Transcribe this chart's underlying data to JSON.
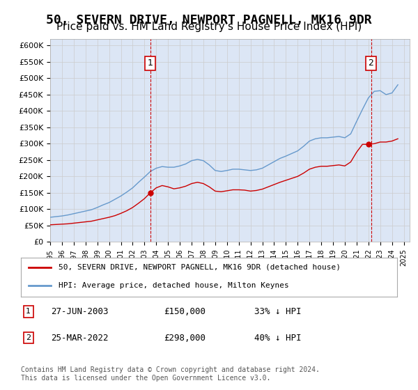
{
  "title": "50, SEVERN DRIVE, NEWPORT PAGNELL, MK16 9DR",
  "subtitle": "Price paid vs. HM Land Registry's House Price Index (HPI)",
  "title_fontsize": 13,
  "subtitle_fontsize": 11,
  "ylabel": "",
  "xlabel": "",
  "ylim": [
    0,
    620000
  ],
  "yticks": [
    0,
    50000,
    100000,
    150000,
    200000,
    250000,
    300000,
    350000,
    400000,
    450000,
    500000,
    550000,
    600000
  ],
  "ytick_labels": [
    "£0",
    "£50K",
    "£100K",
    "£150K",
    "£200K",
    "£250K",
    "£300K",
    "£350K",
    "£400K",
    "£450K",
    "£500K",
    "£550K",
    "£600K"
  ],
  "grid_color": "#cccccc",
  "bg_color": "#dce6f5",
  "plot_bg_color": "#dce6f5",
  "fig_bg_color": "#ffffff",
  "red_line_color": "#cc0000",
  "blue_line_color": "#6699cc",
  "transaction1": {
    "date_label": "27-JUN-2003",
    "year": 2003.49,
    "price": 150000,
    "label": "1"
  },
  "transaction2": {
    "date_label": "25-MAR-2022",
    "year": 2022.22,
    "price": 298000,
    "label": "2"
  },
  "vline_color": "#cc0000",
  "marker_box_color": "#cc0000",
  "legend_label_red": "50, SEVERN DRIVE, NEWPORT PAGNELL, MK16 9DR (detached house)",
  "legend_label_blue": "HPI: Average price, detached house, Milton Keynes",
  "footer": "Contains HM Land Registry data © Crown copyright and database right 2024.\nThis data is licensed under the Open Government Licence v3.0.",
  "table_rows": [
    {
      "num": "1",
      "date": "27-JUN-2003",
      "price": "£150,000",
      "pct": "33% ↓ HPI"
    },
    {
      "num": "2",
      "date": "25-MAR-2022",
      "price": "£298,000",
      "pct": "40% ↓ HPI"
    }
  ],
  "hpi_x": [
    1995,
    1995.5,
    1996,
    1996.5,
    1997,
    1997.5,
    1998,
    1998.5,
    1999,
    1999.5,
    2000,
    2000.5,
    2001,
    2001.5,
    2002,
    2002.5,
    2003,
    2003.5,
    2004,
    2004.5,
    2005,
    2005.5,
    2006,
    2006.5,
    2007,
    2007.5,
    2008,
    2008.5,
    2009,
    2009.5,
    2010,
    2010.5,
    2011,
    2011.5,
    2012,
    2012.5,
    2013,
    2013.5,
    2014,
    2014.5,
    2015,
    2015.5,
    2016,
    2016.5,
    2017,
    2017.5,
    2018,
    2018.5,
    2019,
    2019.5,
    2020,
    2020.5,
    2021,
    2021.5,
    2022,
    2022.5,
    2023,
    2023.5,
    2024,
    2024.5
  ],
  "hpi_y": [
    75000,
    77000,
    79000,
    82000,
    86000,
    90000,
    94000,
    98000,
    105000,
    113000,
    120000,
    130000,
    140000,
    152000,
    165000,
    182000,
    198000,
    215000,
    225000,
    230000,
    228000,
    228000,
    232000,
    238000,
    248000,
    252000,
    248000,
    235000,
    218000,
    215000,
    218000,
    222000,
    222000,
    220000,
    218000,
    220000,
    225000,
    235000,
    245000,
    255000,
    262000,
    270000,
    278000,
    292000,
    308000,
    315000,
    318000,
    318000,
    320000,
    322000,
    318000,
    330000,
    368000,
    405000,
    440000,
    460000,
    462000,
    450000,
    455000,
    480000
  ],
  "price_x": [
    1995,
    1995.5,
    1996,
    1996.5,
    1997,
    1997.5,
    1998,
    1998.5,
    1999,
    1999.5,
    2000,
    2000.5,
    2001,
    2001.5,
    2002,
    2002.5,
    2003,
    2003.5,
    2004,
    2004.5,
    2005,
    2005.5,
    2006,
    2006.5,
    2007,
    2007.5,
    2008,
    2008.5,
    2009,
    2009.5,
    2010,
    2010.5,
    2011,
    2011.5,
    2012,
    2012.5,
    2013,
    2013.5,
    2014,
    2014.5,
    2015,
    2015.5,
    2016,
    2016.5,
    2017,
    2017.5,
    2018,
    2018.5,
    2019,
    2019.5,
    2020,
    2020.5,
    2021,
    2021.5,
    2022,
    2022.5,
    2023,
    2023.5,
    2024,
    2024.5
  ],
  "price_y": [
    52000,
    53000,
    54000,
    55000,
    57000,
    59000,
    61000,
    63000,
    67000,
    71000,
    75000,
    80000,
    87000,
    95000,
    105000,
    118000,
    132000,
    150000,
    165000,
    172000,
    168000,
    162000,
    165000,
    170000,
    178000,
    182000,
    178000,
    168000,
    155000,
    153000,
    156000,
    159000,
    159000,
    158000,
    155000,
    157000,
    161000,
    168000,
    175000,
    182000,
    188000,
    194000,
    200000,
    210000,
    222000,
    228000,
    231000,
    231000,
    233000,
    235000,
    232000,
    244000,
    274000,
    298000,
    298000,
    300000,
    305000,
    305000,
    308000,
    315000
  ]
}
